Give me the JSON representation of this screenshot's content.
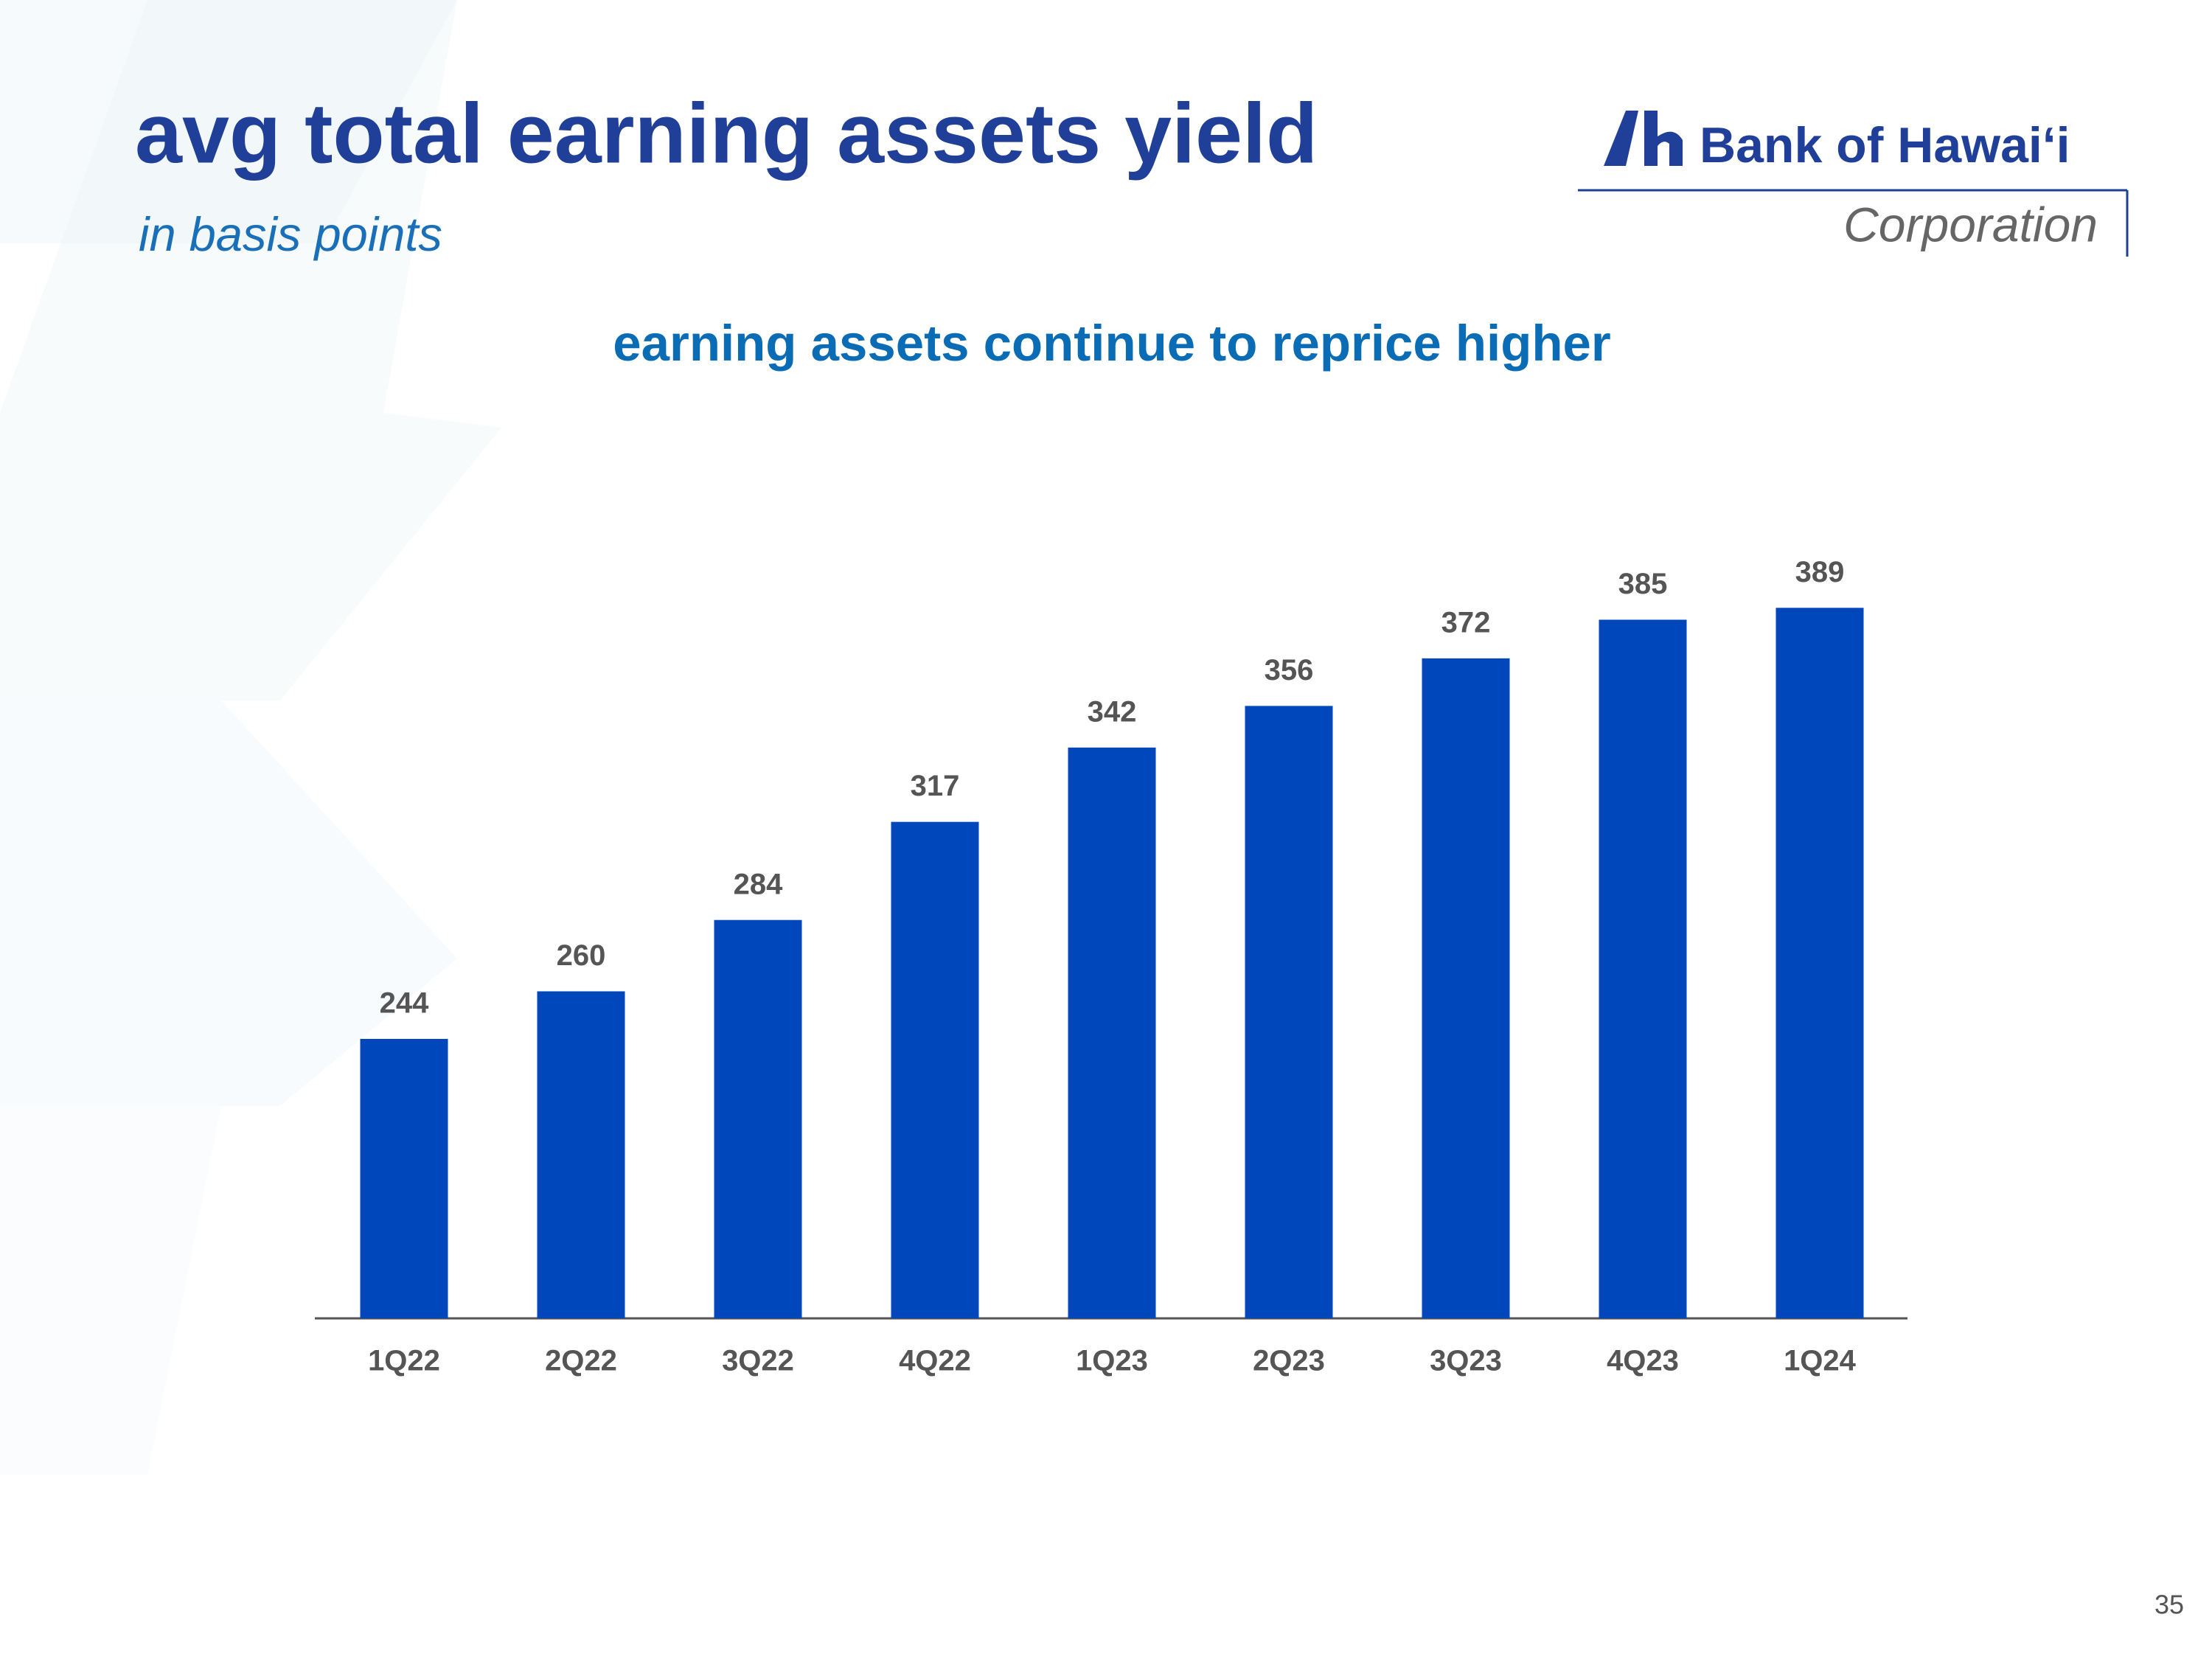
{
  "chart_data": {
    "type": "bar",
    "title": "avg total earning assets yield",
    "subtitle": "in basis points",
    "chart_title": "earning assets continue to reprice higher",
    "categories": [
      "1Q22",
      "2Q22",
      "3Q22",
      "4Q22",
      "1Q23",
      "2Q23",
      "3Q23",
      "4Q23",
      "1Q24"
    ],
    "values": [
      244,
      260,
      284,
      317,
      342,
      356,
      372,
      385,
      389
    ],
    "color": "#0047bb",
    "ylim": [
      150,
      400
    ]
  },
  "logo": {
    "name": "Bank of Hawaiʻi",
    "sub": "Corporation"
  },
  "page_number": "35"
}
